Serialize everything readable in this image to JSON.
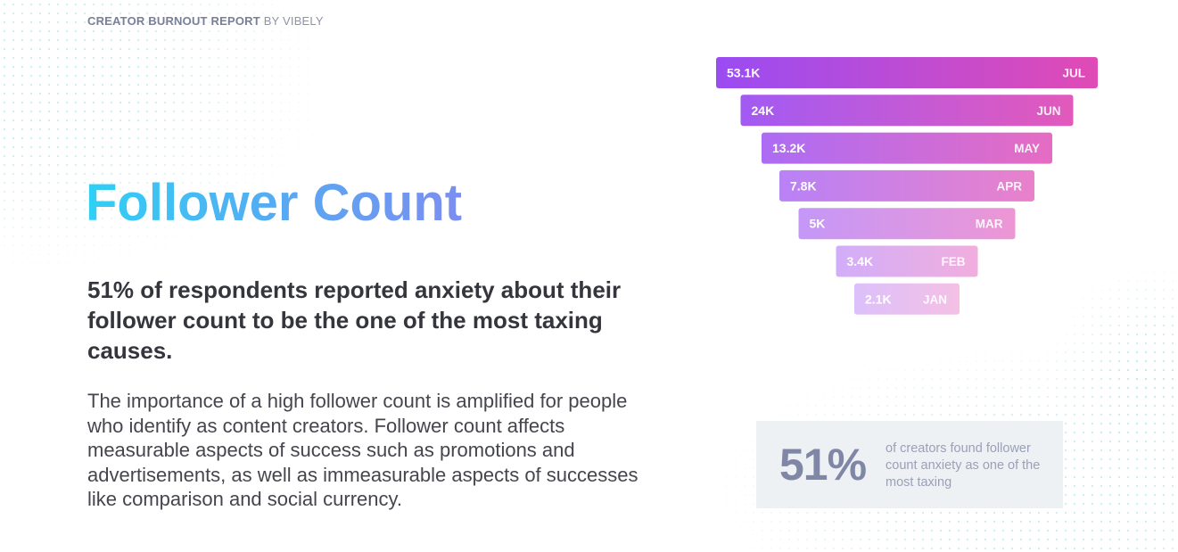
{
  "header": {
    "report_name": "CREATOR BURNOUT REPORT",
    "by_label": "BY VIBELY"
  },
  "main": {
    "title": "Follower Count",
    "headline": "51% of respondents reported anxiety about their follower count to be the one of the most taxing causes.",
    "body": "The importance of a high follower count is amplified for people who identify as content creators. Follower count affects measurable aspects of success such as promotions and advertisements, as well as immeasurable aspects of successes like comparison and social currency."
  },
  "stat_card": {
    "value": "51%",
    "caption": "of creators found follower count anxiety as one of the most taxing"
  },
  "colors": {
    "title_gradient": [
      "#2fd0f5",
      "#7c8ef0"
    ],
    "funnel_start": "#9a4cf2",
    "funnel_end": "#e04bb5"
  },
  "chart_data": {
    "type": "bar",
    "orientation": "horizontal-funnel",
    "title": "",
    "categories": [
      "JUL",
      "JUN",
      "MAY",
      "APR",
      "MAR",
      "FEB",
      "JAN"
    ],
    "series": [
      {
        "values": [
          53100,
          24000,
          13200,
          7800,
          5000,
          3400,
          2100
        ],
        "value_labels": [
          "53.1K",
          "24K",
          "13.2K",
          "7.8K",
          "5K",
          "3.4K",
          "2.1K"
        ]
      }
    ],
    "grid": false,
    "legend": "none"
  }
}
